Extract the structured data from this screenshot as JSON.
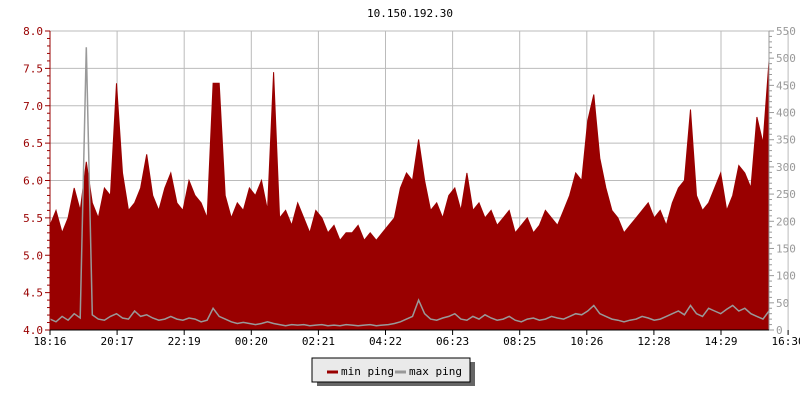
{
  "chart_data": {
    "type": "line",
    "title": "10.150.192.30",
    "x_tick_labels": [
      "18:16",
      "20:17",
      "22:19",
      "00:20",
      "02:21",
      "04:22",
      "06:23",
      "08:25",
      "10:26",
      "12:28",
      "14:29",
      "16:30"
    ],
    "left_axis": {
      "ylim": [
        4.0,
        8.0
      ],
      "ticks": [
        "4.0",
        "4.5",
        "5.0",
        "5.5",
        "6.0",
        "6.5",
        "7.0",
        "7.5",
        "8.0"
      ],
      "color": "#990000"
    },
    "right_axis": {
      "ylim": [
        0,
        550
      ],
      "ticks": [
        "0",
        "50",
        "100",
        "150",
        "200",
        "250",
        "300",
        "350",
        "400",
        "450",
        "500",
        "550"
      ],
      "color": "#999999"
    },
    "grid": true,
    "legend_placement": "bottom",
    "series": [
      {
        "name": "min ping",
        "axis": "left",
        "color": "#990000",
        "style": "area",
        "values": [
          5.4,
          5.6,
          5.3,
          5.5,
          5.9,
          5.6,
          6.25,
          5.7,
          5.5,
          5.9,
          5.8,
          7.3,
          6.1,
          5.6,
          5.7,
          5.9,
          6.35,
          5.8,
          5.6,
          5.9,
          6.1,
          5.7,
          5.6,
          6.0,
          5.8,
          5.7,
          5.5,
          7.3,
          7.3,
          5.8,
          5.5,
          5.7,
          5.6,
          5.9,
          5.8,
          6.0,
          5.6,
          7.45,
          5.5,
          5.6,
          5.4,
          5.7,
          5.5,
          5.3,
          5.6,
          5.5,
          5.3,
          5.4,
          5.2,
          5.3,
          5.3,
          5.4,
          5.2,
          5.3,
          5.2,
          5.3,
          5.4,
          5.5,
          5.9,
          6.1,
          6.0,
          6.55,
          6.0,
          5.6,
          5.7,
          5.5,
          5.8,
          5.9,
          5.6,
          6.1,
          5.6,
          5.7,
          5.5,
          5.6,
          5.4,
          5.5,
          5.6,
          5.3,
          5.4,
          5.5,
          5.3,
          5.4,
          5.6,
          5.5,
          5.4,
          5.6,
          5.8,
          6.1,
          6.0,
          6.8,
          7.15,
          6.3,
          5.9,
          5.6,
          5.5,
          5.3,
          5.4,
          5.5,
          5.6,
          5.7,
          5.5,
          5.6,
          5.4,
          5.7,
          5.9,
          6.0,
          6.95,
          5.8,
          5.6,
          5.7,
          5.9,
          6.1,
          5.6,
          5.8,
          6.2,
          6.1,
          5.9,
          6.85,
          6.5,
          7.6
        ]
      },
      {
        "name": "max ping",
        "axis": "right",
        "color": "#999999",
        "style": "line",
        "values": [
          20,
          15,
          25,
          18,
          30,
          22,
          520,
          28,
          20,
          18,
          25,
          30,
          22,
          20,
          35,
          25,
          28,
          22,
          18,
          20,
          25,
          20,
          18,
          22,
          20,
          15,
          18,
          40,
          25,
          20,
          15,
          12,
          14,
          12,
          10,
          12,
          15,
          12,
          10,
          8,
          10,
          9,
          10,
          8,
          9,
          10,
          8,
          9,
          8,
          10,
          9,
          8,
          9,
          10,
          8,
          9,
          10,
          12,
          15,
          20,
          25,
          55,
          30,
          20,
          18,
          22,
          25,
          30,
          20,
          18,
          25,
          20,
          28,
          22,
          18,
          20,
          25,
          18,
          15,
          20,
          22,
          18,
          20,
          25,
          22,
          20,
          25,
          30,
          28,
          35,
          45,
          30,
          25,
          20,
          18,
          15,
          18,
          20,
          25,
          22,
          18,
          20,
          25,
          30,
          35,
          28,
          45,
          30,
          25,
          40,
          35,
          30,
          38,
          45,
          35,
          40,
          30,
          25,
          20,
          35
        ]
      }
    ]
  }
}
